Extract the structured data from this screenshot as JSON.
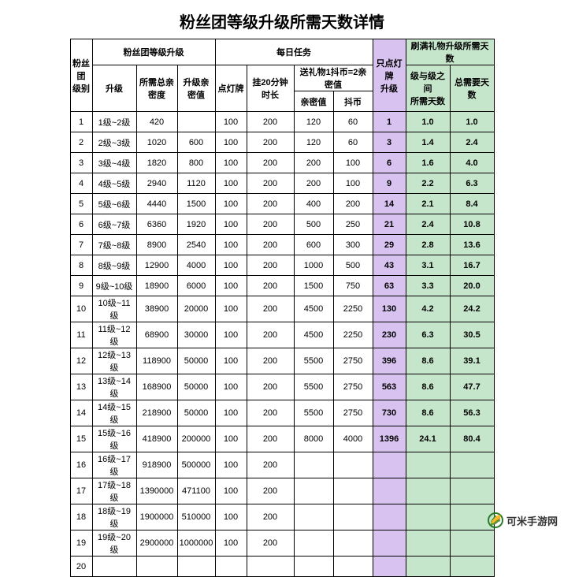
{
  "title": "粉丝团等级升级所需天数详情",
  "headers": {
    "level_group": "粉丝团\n级别",
    "upgrade_group": "粉丝团等级升级",
    "upgrade_lvl": "升级",
    "upgrade_need": "所需总亲密度",
    "upgrade_int": "升级亲密值",
    "daily_group": "每日任务",
    "daily_lamp": "点灯牌",
    "daily_hang": "挂20分钟时长",
    "daily_gift_group": "送礼物1抖币=2亲密值",
    "daily_gift_int": "亲密值",
    "daily_gift_coin": "抖币",
    "only_lamp": "只点灯牌\n升级",
    "gift_days_group": "刷满礼物升级所需天数",
    "gift_days_between": "级与级之间\n所需天数",
    "gift_days_total": "总需要天数"
  },
  "rows": [
    {
      "idx": "1",
      "lvl": "1级~2级",
      "need": "420",
      "upint": "",
      "lamp": "100",
      "hang": "200",
      "gint": "120",
      "gcoin": "60",
      "only": "1",
      "d1": "1.0",
      "d2": "1.0"
    },
    {
      "idx": "2",
      "lvl": "2级~3级",
      "need": "1020",
      "upint": "600",
      "lamp": "100",
      "hang": "200",
      "gint": "120",
      "gcoin": "60",
      "only": "3",
      "d1": "1.4",
      "d2": "2.4"
    },
    {
      "idx": "3",
      "lvl": "3级~4级",
      "need": "1820",
      "upint": "800",
      "lamp": "100",
      "hang": "200",
      "gint": "200",
      "gcoin": "100",
      "only": "6",
      "d1": "1.6",
      "d2": "4.0"
    },
    {
      "idx": "4",
      "lvl": "4级~5级",
      "need": "2940",
      "upint": "1120",
      "lamp": "100",
      "hang": "200",
      "gint": "200",
      "gcoin": "100",
      "only": "9",
      "d1": "2.2",
      "d2": "6.3"
    },
    {
      "idx": "5",
      "lvl": "5级~6级",
      "need": "4440",
      "upint": "1500",
      "lamp": "100",
      "hang": "200",
      "gint": "400",
      "gcoin": "200",
      "only": "14",
      "d1": "2.1",
      "d2": "8.4"
    },
    {
      "idx": "6",
      "lvl": "6级~7级",
      "need": "6360",
      "upint": "1920",
      "lamp": "100",
      "hang": "200",
      "gint": "500",
      "gcoin": "250",
      "only": "21",
      "d1": "2.4",
      "d2": "10.8"
    },
    {
      "idx": "7",
      "lvl": "7级~8级",
      "need": "8900",
      "upint": "2540",
      "lamp": "100",
      "hang": "200",
      "gint": "600",
      "gcoin": "300",
      "only": "29",
      "d1": "2.8",
      "d2": "13.6"
    },
    {
      "idx": "8",
      "lvl": "8级~9级",
      "need": "12900",
      "upint": "4000",
      "lamp": "100",
      "hang": "200",
      "gint": "1000",
      "gcoin": "500",
      "only": "43",
      "d1": "3.1",
      "d2": "16.7"
    },
    {
      "idx": "9",
      "lvl": "9级~10级",
      "need": "18900",
      "upint": "6000",
      "lamp": "100",
      "hang": "200",
      "gint": "1500",
      "gcoin": "750",
      "only": "63",
      "d1": "3.3",
      "d2": "20.0"
    },
    {
      "idx": "10",
      "lvl": "10级~11级",
      "need": "38900",
      "upint": "20000",
      "lamp": "100",
      "hang": "200",
      "gint": "4500",
      "gcoin": "2250",
      "only": "130",
      "d1": "4.2",
      "d2": "24.2"
    },
    {
      "idx": "11",
      "lvl": "11级~12级",
      "need": "68900",
      "upint": "30000",
      "lamp": "100",
      "hang": "200",
      "gint": "4500",
      "gcoin": "2250",
      "only": "230",
      "d1": "6.3",
      "d2": "30.5"
    },
    {
      "idx": "12",
      "lvl": "12级~13级",
      "need": "118900",
      "upint": "50000",
      "lamp": "100",
      "hang": "200",
      "gint": "5500",
      "gcoin": "2750",
      "only": "396",
      "d1": "8.6",
      "d2": "39.1"
    },
    {
      "idx": "13",
      "lvl": "13级~14级",
      "need": "168900",
      "upint": "50000",
      "lamp": "100",
      "hang": "200",
      "gint": "5500",
      "gcoin": "2750",
      "only": "563",
      "d1": "8.6",
      "d2": "47.7"
    },
    {
      "idx": "14",
      "lvl": "14级~15级",
      "need": "218900",
      "upint": "50000",
      "lamp": "100",
      "hang": "200",
      "gint": "5500",
      "gcoin": "2750",
      "only": "730",
      "d1": "8.6",
      "d2": "56.3"
    },
    {
      "idx": "15",
      "lvl": "15级~16级",
      "need": "418900",
      "upint": "200000",
      "lamp": "100",
      "hang": "200",
      "gint": "8000",
      "gcoin": "4000",
      "only": "1396",
      "d1": "24.1",
      "d2": "80.4"
    },
    {
      "idx": "16",
      "lvl": "16级~17级",
      "need": "918900",
      "upint": "500000",
      "lamp": "100",
      "hang": "200",
      "gint": "",
      "gcoin": "",
      "only": "",
      "d1": "",
      "d2": ""
    },
    {
      "idx": "17",
      "lvl": "17级~18级",
      "need": "1390000",
      "upint": "471100",
      "lamp": "100",
      "hang": "200",
      "gint": "",
      "gcoin": "",
      "only": "",
      "d1": "",
      "d2": ""
    },
    {
      "idx": "18",
      "lvl": "18级~19级",
      "need": "1900000",
      "upint": "510000",
      "lamp": "100",
      "hang": "200",
      "gint": "",
      "gcoin": "",
      "only": "",
      "d1": "",
      "d2": ""
    },
    {
      "idx": "19",
      "lvl": "19级~20级",
      "need": "2900000",
      "upint": "1000000",
      "lamp": "100",
      "hang": "200",
      "gint": "",
      "gcoin": "",
      "only": "",
      "d1": "",
      "d2": ""
    },
    {
      "idx": "20",
      "lvl": "",
      "need": "",
      "upint": "",
      "lamp": "",
      "hang": "",
      "gint": "",
      "gcoin": "",
      "only": "",
      "d1": "",
      "d2": ""
    }
  ],
  "watermark": "可米手游网",
  "colors": {
    "purple": "#d8c2f0",
    "green": "#c6e6cc",
    "border": "#000000",
    "bg": "#ffffff"
  },
  "fontsize": {
    "title": 20,
    "cell": 11
  }
}
